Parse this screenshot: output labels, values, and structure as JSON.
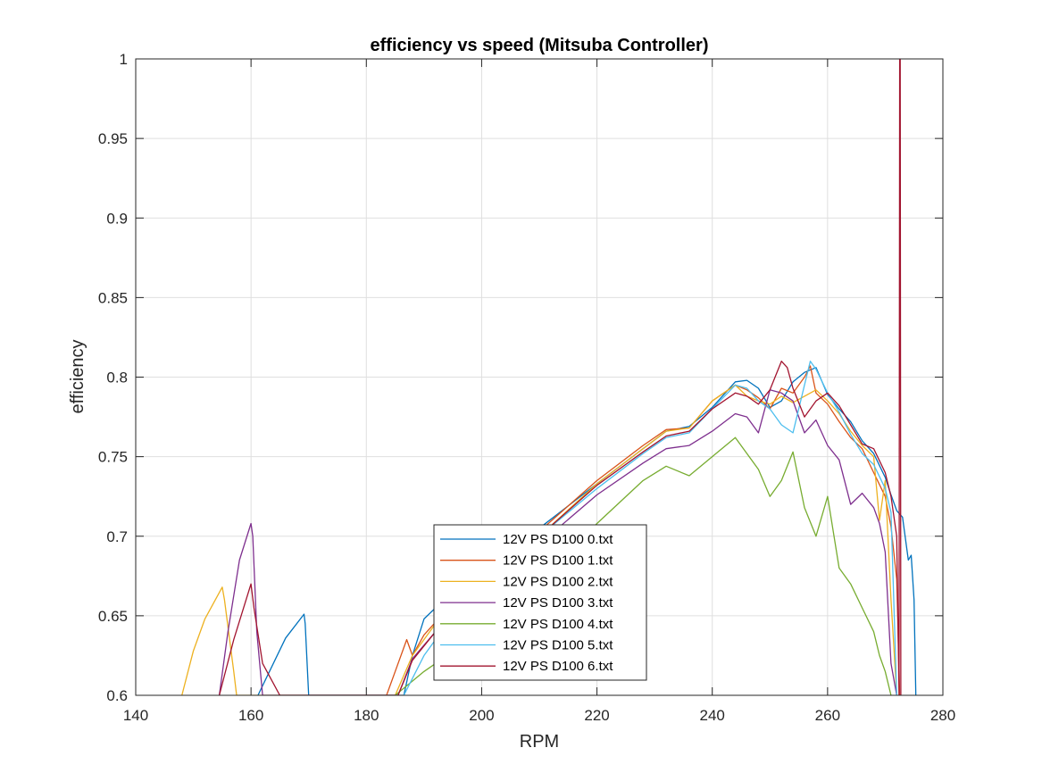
{
  "chart_data": {
    "type": "line",
    "title": "efficiency vs speed (Mitsuba Controller)",
    "xlabel": "RPM",
    "ylabel": "efficiency",
    "xlim": [
      140,
      280
    ],
    "ylim": [
      0.6,
      1
    ],
    "grid": true,
    "legend_position": "bottom-center",
    "xticks": [
      "140",
      "160",
      "180",
      "200",
      "220",
      "240",
      "260",
      "280"
    ],
    "yticks": [
      "0.6",
      "0.65",
      "0.7",
      "0.75",
      "0.8",
      "0.85",
      "0.9",
      "0.95",
      "1"
    ],
    "series": [
      {
        "name": "12V PS D100 0.txt",
        "color": "#0072BD",
        "x": [
          161.2,
          166,
          169.2,
          169.4,
          170,
          186.5,
          188,
          190,
          192,
          194,
          200,
          210,
          220,
          228,
          232,
          236,
          240,
          244,
          246,
          248,
          250,
          252,
          254,
          256,
          258,
          260,
          262,
          264,
          266,
          268,
          270,
          271,
          272,
          273,
          274,
          274.5,
          275,
          275.3
        ],
        "y": [
          0.6,
          0.636,
          0.651,
          0.645,
          0.6,
          0.6,
          0.625,
          0.648,
          0.655,
          0.657,
          0.674,
          0.705,
          0.733,
          0.755,
          0.766,
          0.769,
          0.781,
          0.797,
          0.798,
          0.793,
          0.781,
          0.785,
          0.797,
          0.803,
          0.806,
          0.789,
          0.78,
          0.772,
          0.76,
          0.752,
          0.737,
          0.726,
          0.716,
          0.712,
          0.685,
          0.688,
          0.66,
          0.6
        ]
      },
      {
        "name": "12V PS D100 1.txt",
        "color": "#D95319",
        "x": [
          183.5,
          185,
          187,
          188,
          190,
          194,
          200,
          210,
          220,
          228,
          232,
          236,
          240,
          244,
          246,
          248,
          250,
          252,
          254,
          256,
          257,
          258,
          260,
          262,
          264,
          266,
          268,
          270,
          271,
          272,
          272.5
        ],
        "y": [
          0.6,
          0.615,
          0.635,
          0.625,
          0.638,
          0.654,
          0.67,
          0.703,
          0.735,
          0.757,
          0.767,
          0.768,
          0.785,
          0.795,
          0.792,
          0.787,
          0.78,
          0.793,
          0.79,
          0.8,
          0.807,
          0.79,
          0.783,
          0.772,
          0.762,
          0.755,
          0.74,
          0.725,
          0.706,
          0.673,
          0.6
        ]
      },
      {
        "name": "12V PS D100 2.txt",
        "color": "#EDB120",
        "x": [
          148,
          150,
          152,
          155,
          155.4,
          157,
          157.5,
          185,
          188,
          192,
          200,
          210,
          220,
          228,
          232,
          236,
          240,
          244,
          246,
          248,
          250,
          252,
          254,
          256,
          258,
          260,
          262,
          264,
          266,
          268,
          269,
          270,
          271,
          272
        ],
        "y": [
          0.6,
          0.628,
          0.648,
          0.668,
          0.66,
          0.615,
          0.6,
          0.6,
          0.625,
          0.645,
          0.668,
          0.7,
          0.733,
          0.755,
          0.766,
          0.768,
          0.785,
          0.795,
          0.788,
          0.785,
          0.783,
          0.788,
          0.784,
          0.788,
          0.792,
          0.785,
          0.777,
          0.766,
          0.757,
          0.75,
          0.71,
          0.735,
          0.66,
          0.6
        ]
      },
      {
        "name": "12V PS D100 3.txt",
        "color": "#7E2F8E",
        "x": [
          154.5,
          156,
          158,
          160,
          160.3,
          161,
          162,
          185.5,
          188,
          192,
          200,
          210,
          220,
          228,
          232,
          236,
          240,
          244,
          246,
          248,
          250,
          252,
          254,
          256,
          258,
          260,
          262,
          264,
          266,
          268,
          269,
          270,
          271,
          272
        ],
        "y": [
          0.6,
          0.64,
          0.685,
          0.708,
          0.7,
          0.64,
          0.6,
          0.6,
          0.623,
          0.64,
          0.662,
          0.695,
          0.726,
          0.746,
          0.755,
          0.757,
          0.766,
          0.777,
          0.775,
          0.765,
          0.792,
          0.79,
          0.785,
          0.765,
          0.773,
          0.757,
          0.748,
          0.72,
          0.727,
          0.718,
          0.708,
          0.69,
          0.62,
          0.6
        ]
      },
      {
        "name": "12V PS D100 4.txt",
        "color": "#77AC30",
        "x": [
          185,
          190,
          200,
          210,
          220,
          228,
          232,
          236,
          240,
          244,
          246,
          248,
          250,
          252,
          254,
          256,
          258,
          260,
          262,
          264,
          266,
          268,
          269,
          270,
          271
        ],
        "y": [
          0.6,
          0.615,
          0.64,
          0.672,
          0.708,
          0.735,
          0.744,
          0.738,
          0.75,
          0.762,
          0.752,
          0.742,
          0.725,
          0.735,
          0.753,
          0.718,
          0.7,
          0.725,
          0.68,
          0.67,
          0.655,
          0.64,
          0.625,
          0.615,
          0.6
        ]
      },
      {
        "name": "12V PS D100 5.txt",
        "color": "#4DBEEE",
        "x": [
          186.5,
          190,
          194,
          200,
          210,
          220,
          228,
          232,
          236,
          240,
          244,
          246,
          248,
          250,
          252,
          254,
          256,
          257,
          258,
          260,
          262,
          264,
          266,
          268,
          270,
          271,
          272
        ],
        "y": [
          0.6,
          0.625,
          0.645,
          0.665,
          0.7,
          0.73,
          0.752,
          0.762,
          0.765,
          0.78,
          0.795,
          0.793,
          0.785,
          0.78,
          0.77,
          0.765,
          0.795,
          0.81,
          0.805,
          0.79,
          0.778,
          0.764,
          0.752,
          0.745,
          0.73,
          0.715,
          0.6
        ]
      },
      {
        "name": "12V PS D100 6.txt",
        "color": "#A2142F",
        "x": [
          154.5,
          157,
          160,
          160.5,
          162,
          165,
          185.5,
          188,
          192,
          200,
          210,
          220,
          228,
          232,
          236,
          240,
          244,
          246,
          248,
          250,
          252,
          253,
          254,
          256,
          258,
          260,
          262,
          264,
          266,
          268,
          270,
          271,
          272,
          272.4,
          272.5,
          272.6,
          272.7
        ],
        "y": [
          0.6,
          0.635,
          0.67,
          0.655,
          0.62,
          0.6,
          0.6,
          0.622,
          0.64,
          0.665,
          0.7,
          0.732,
          0.753,
          0.763,
          0.766,
          0.78,
          0.79,
          0.788,
          0.783,
          0.792,
          0.81,
          0.806,
          0.793,
          0.775,
          0.785,
          0.79,
          0.782,
          0.77,
          0.758,
          0.755,
          0.74,
          0.725,
          0.7,
          0.6,
          1.0,
          1.0,
          0.6
        ]
      }
    ]
  }
}
